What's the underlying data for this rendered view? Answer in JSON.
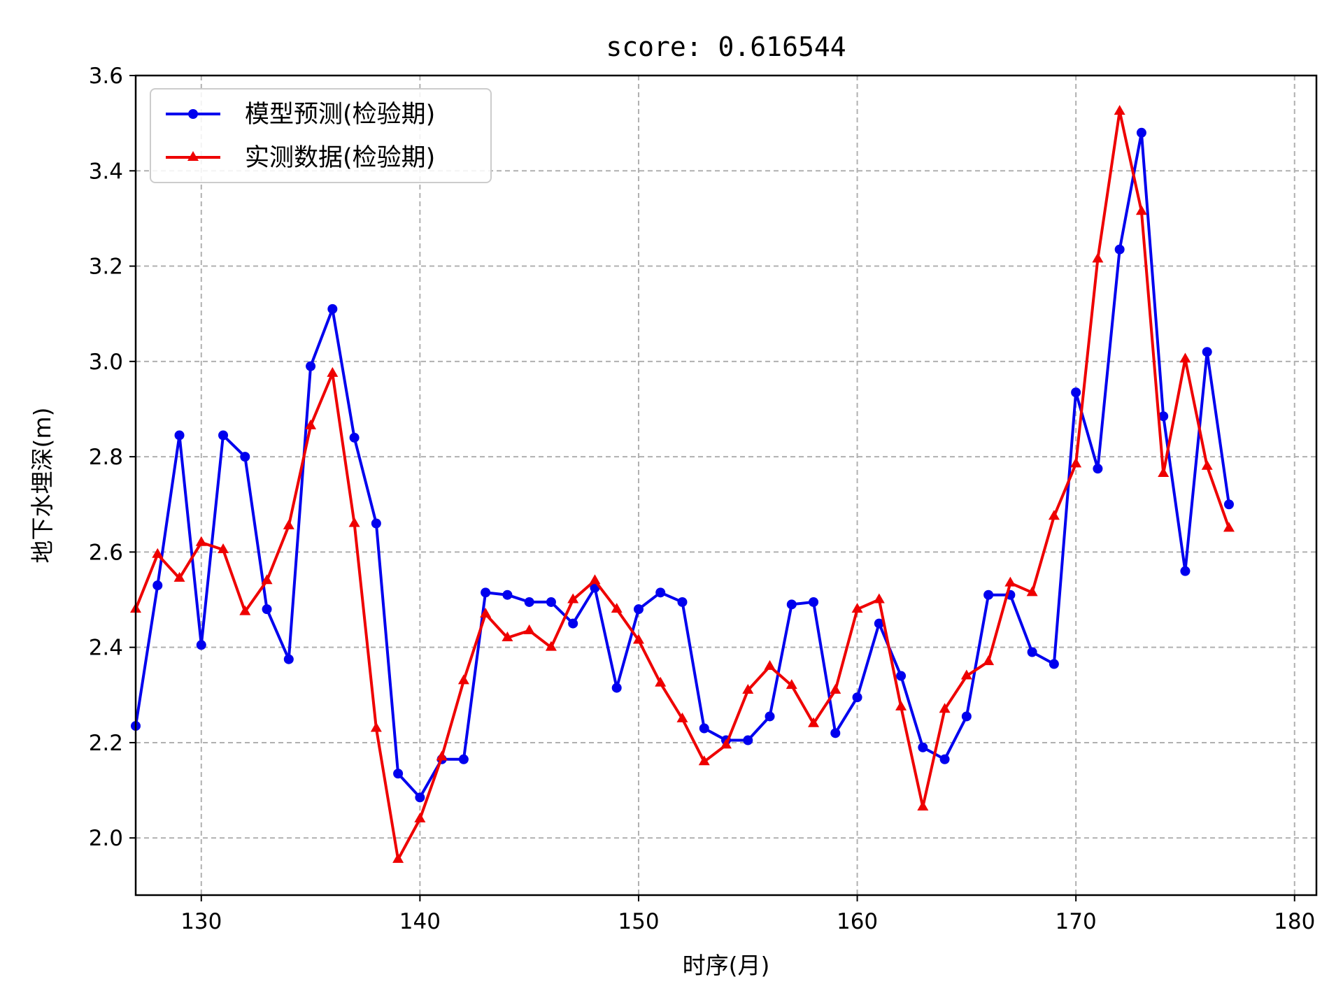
{
  "chart_data": {
    "type": "line",
    "title": "score: 0.616544",
    "xlabel": "时序(月)",
    "ylabel": "地下水埋深(m)",
    "xlim": [
      127,
      181
    ],
    "ylim": [
      1.88,
      3.6
    ],
    "xticks": [
      130,
      140,
      150,
      160,
      170,
      180
    ],
    "yticks": [
      2.0,
      2.2,
      2.4,
      2.6,
      2.8,
      3.0,
      3.2,
      3.4,
      3.6
    ],
    "xtick_labels": [
      "130",
      "140",
      "150",
      "160",
      "170",
      "180"
    ],
    "ytick_labels": [
      "2.0",
      "2.2",
      "2.4",
      "2.6",
      "2.8",
      "3.0",
      "3.2",
      "3.4",
      "3.6"
    ],
    "grid": true,
    "legend_position": "top-left",
    "x": [
      127,
      128,
      129,
      130,
      131,
      132,
      133,
      134,
      135,
      136,
      137,
      138,
      139,
      140,
      141,
      142,
      143,
      144,
      145,
      146,
      147,
      148,
      149,
      150,
      151,
      152,
      153,
      154,
      155,
      156,
      157,
      158,
      159,
      160,
      161,
      162,
      163,
      164,
      165,
      166,
      167,
      168,
      169,
      170,
      171,
      172,
      173,
      174,
      175,
      176,
      177
    ],
    "series": [
      {
        "name": "模型预测(检验期)",
        "color": "#0000ee",
        "marker": "circle",
        "values": [
          2.235,
          2.53,
          2.845,
          2.405,
          2.845,
          2.8,
          2.48,
          2.375,
          2.99,
          3.11,
          2.84,
          2.66,
          2.135,
          2.085,
          2.165,
          2.165,
          2.515,
          2.51,
          2.495,
          2.495,
          2.45,
          2.525,
          2.315,
          2.48,
          2.515,
          2.495,
          2.23,
          2.205,
          2.205,
          2.255,
          2.49,
          2.495,
          2.22,
          2.295,
          2.45,
          2.34,
          2.19,
          2.165,
          2.255,
          2.51,
          2.51,
          2.39,
          2.365,
          2.935,
          2.775,
          3.235,
          3.48,
          2.885,
          2.56,
          3.02,
          2.7
        ]
      },
      {
        "name": "实测数据(检验期)",
        "color": "#ee0000",
        "marker": "triangle",
        "values": [
          2.48,
          2.595,
          2.545,
          2.62,
          2.605,
          2.475,
          2.54,
          2.655,
          2.865,
          2.975,
          2.66,
          2.23,
          1.955,
          2.04,
          2.17,
          2.33,
          2.47,
          2.42,
          2.435,
          2.4,
          2.5,
          2.54,
          2.48,
          2.415,
          2.325,
          2.25,
          2.16,
          2.195,
          2.31,
          2.36,
          2.32,
          2.24,
          2.31,
          2.48,
          2.5,
          2.275,
          2.065,
          2.27,
          2.34,
          2.37,
          2.535,
          2.515,
          2.675,
          2.785,
          3.215,
          3.525,
          3.315,
          2.765,
          3.005,
          2.78,
          2.65
        ]
      }
    ]
  }
}
